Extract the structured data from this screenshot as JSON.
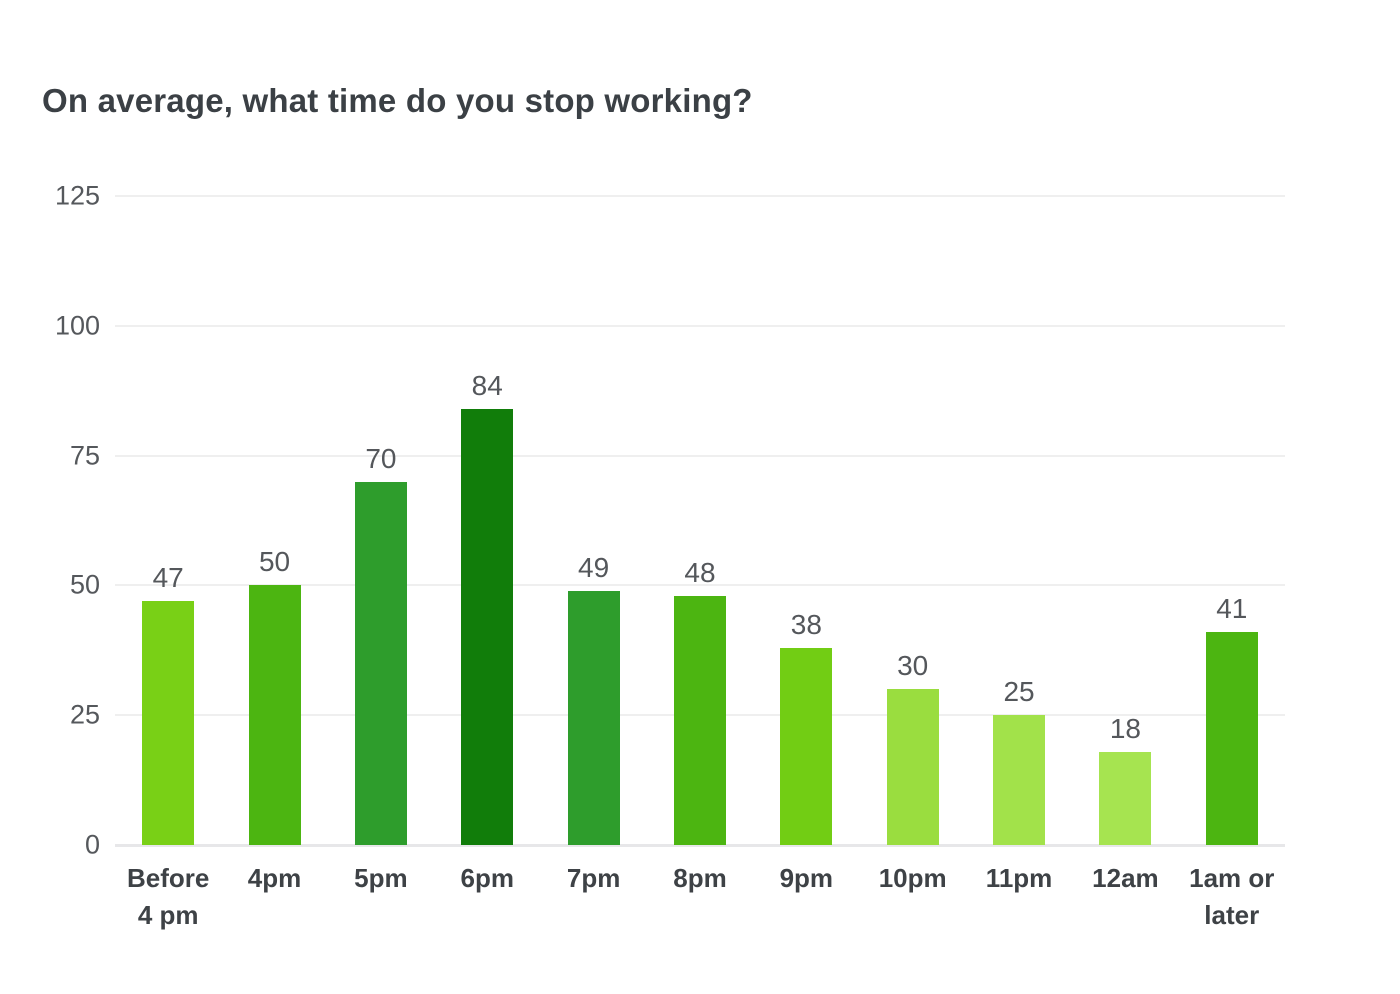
{
  "chart_data": {
    "type": "bar",
    "title": "On average, what time do you stop working?",
    "categories": [
      "Before 4 pm",
      "4pm",
      "5pm",
      "6pm",
      "7pm",
      "8pm",
      "9pm",
      "10pm",
      "11pm",
      "12am",
      "1am or later"
    ],
    "values": [
      47,
      50,
      70,
      84,
      49,
      48,
      38,
      30,
      25,
      18,
      41
    ],
    "bar_colors": [
      "#79D016",
      "#4CB511",
      "#2E9D2C",
      "#117D0A",
      "#2E9D2C",
      "#4CB511",
      "#72CD14",
      "#9ADD3F",
      "#A2E24A",
      "#A6E450",
      "#4CB511"
    ],
    "y_ticks": [
      0,
      25,
      50,
      75,
      100,
      125
    ],
    "ylim": [
      0,
      125
    ],
    "xlabel": "",
    "ylabel": "",
    "grid": true,
    "legend": "none",
    "value_labels_shown": true
  },
  "styles": {
    "background": "#FFFFFF",
    "title_color": "#3B4045",
    "tick_label_color": "#55585C",
    "category_label_color": "#3E4246",
    "value_label_color": "#54575B",
    "gridline_color": "#EFEFEF",
    "axis_line_color": "#E7E7E9"
  }
}
